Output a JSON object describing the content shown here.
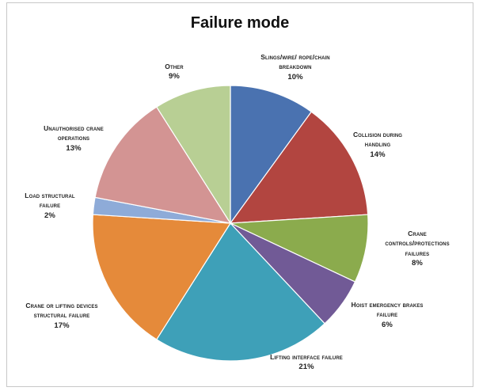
{
  "chart_data": {
    "type": "pie",
    "title": "Failure mode",
    "slices": [
      {
        "label": "Slings/wire/ rope/chain breakdown",
        "value": 10,
        "value_label": "10%",
        "color": "#4a72b0"
      },
      {
        "label": "Collision during handling",
        "value": 14,
        "value_label": "14%",
        "color": "#b24540"
      },
      {
        "label": "Crane controls/protections failures",
        "value": 8,
        "value_label": "8%",
        "color": "#8bab4d"
      },
      {
        "label": "Hoist emergency brakes failure",
        "value": 6,
        "value_label": "6%",
        "color": "#715a96"
      },
      {
        "label": "Lifting interface failure",
        "value": 21,
        "value_label": "21%",
        "color": "#3ea0b8"
      },
      {
        "label": "Crane or lifting devices structural failure",
        "value": 17,
        "value_label": "17%",
        "color": "#e58a3a"
      },
      {
        "label": "Load structural failure",
        "value": 2,
        "value_label": "2%",
        "color": "#8eabd8"
      },
      {
        "label": "Unauthorised crane operations",
        "value": 13,
        "value_label": "13%",
        "color": "#d39493"
      },
      {
        "label": "Other",
        "value": 9,
        "value_label": "9%",
        "color": "#b8cf94"
      }
    ]
  }
}
